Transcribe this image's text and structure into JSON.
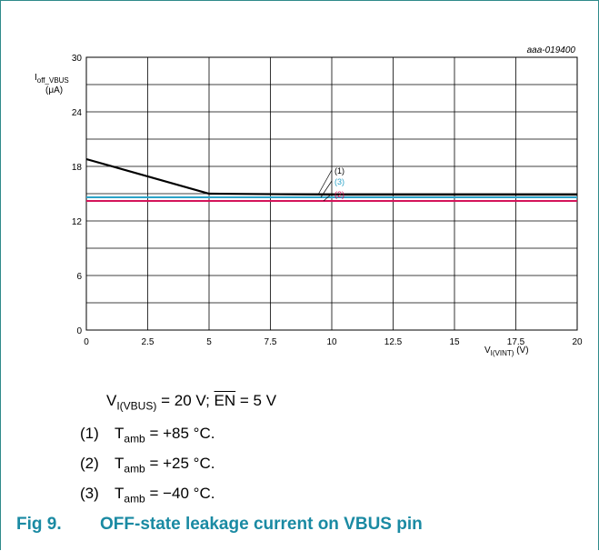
{
  "figure_id": "aaa-019400",
  "conditions": {
    "v_main": "V",
    "v_sub": "I(VBUS)",
    "v_value": " = 20 V; ",
    "en_label": "EN",
    "en_value": " = 5 V"
  },
  "notes": [
    {
      "num": "(1)",
      "t": "T",
      "sub": "amb",
      "value": " = +85 °C."
    },
    {
      "num": "(2)",
      "t": "T",
      "sub": "amb",
      "value": " = +25 °C."
    },
    {
      "num": "(3)",
      "t": "T",
      "sub": "amb",
      "value": " = −40 °C."
    }
  ],
  "caption": {
    "number": "Fig 9.",
    "title": "OFF-state leakage current on VBUS pin"
  },
  "chart_data": {
    "type": "line",
    "xlabel": "V",
    "xlabel_sub": "I(VINT)",
    "xlabel_unit": " (V)",
    "ylabel": "I",
    "ylabel_sub": "off_VBUS",
    "ylabel_unit": "(μA)",
    "xlim": [
      0,
      20
    ],
    "ylim": [
      0,
      30
    ],
    "xticks": [
      0,
      2.5,
      5,
      7.5,
      10,
      12.5,
      15,
      17.5,
      20
    ],
    "xtick_labels": [
      "0",
      "2.5",
      "5",
      "7.5",
      "10",
      "12.5",
      "15",
      "17.5",
      "20"
    ],
    "yticks": [
      0,
      6,
      12,
      18,
      24,
      30
    ],
    "ytick_labels": [
      "0",
      "6",
      "12",
      "18",
      "24",
      "30"
    ],
    "grid": true,
    "series": [
      {
        "name": "(1)",
        "color": "#000000",
        "x": [
          0,
          5,
          10,
          20
        ],
        "y": [
          18.8,
          15.0,
          14.9,
          14.9
        ]
      },
      {
        "name": "(3)",
        "color": "#2ba3c8",
        "x": [
          0,
          20
        ],
        "y": [
          14.6,
          14.6
        ]
      },
      {
        "name": "(2)",
        "color": "#d4145a",
        "x": [
          0,
          20
        ],
        "y": [
          14.2,
          14.2
        ]
      }
    ]
  }
}
